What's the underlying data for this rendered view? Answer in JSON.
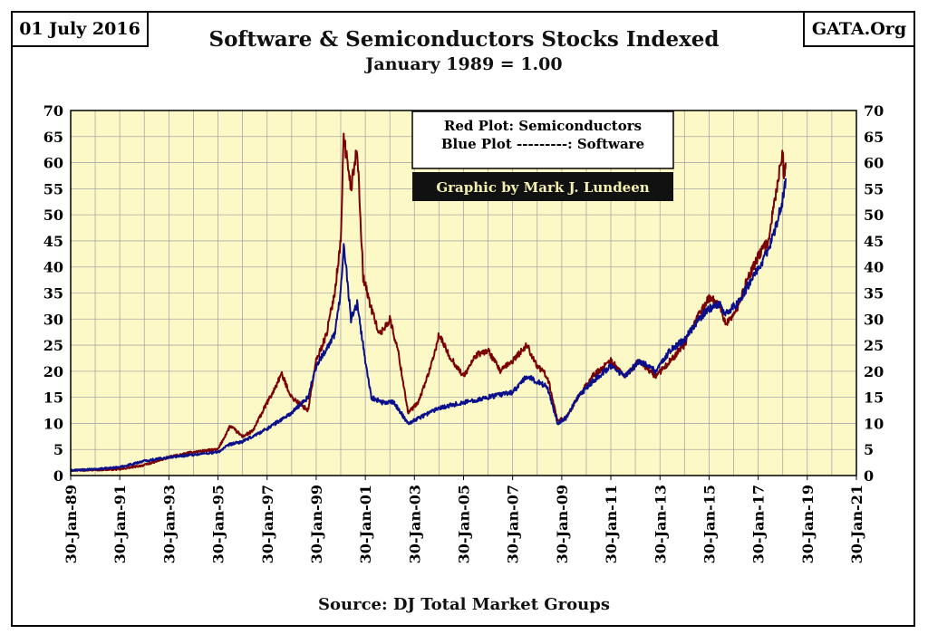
{
  "header": {
    "date": "01 July 2016",
    "site": "GATA.Org",
    "title": "Software & Semiconductors Stocks Indexed",
    "subtitle": "January 1989 = 1.00",
    "source": "Source: DJ Total Market Groups"
  },
  "legend": {
    "line1": "Red Plot: Semiconductors",
    "line2": "Blue Plot ---------: Software",
    "credit": "Graphic by Mark J. Lundeen"
  },
  "colors": {
    "plot_background": "#fdf9c6",
    "grid": "#a8a8a8",
    "semiconductors": "#7b0000",
    "software": "#0a0f8c",
    "credit_background": "#111111",
    "credit_text": "#f3eeb0"
  },
  "chart_data": {
    "type": "line",
    "ylim": [
      0,
      70
    ],
    "yticks": [
      0,
      5,
      10,
      15,
      20,
      25,
      30,
      35,
      40,
      45,
      50,
      55,
      60,
      65,
      70
    ],
    "xlim": [
      "1989-01-30",
      "2021-01-30"
    ],
    "xtick_labels": [
      "30-Jan-89",
      "30-Jan-91",
      "30-Jan-93",
      "30-Jan-95",
      "30-Jan-97",
      "30-Jan-99",
      "30-Jan-01",
      "30-Jan-03",
      "30-Jan-05",
      "30-Jan-07",
      "30-Jan-09",
      "30-Jan-11",
      "30-Jan-13",
      "30-Jan-15",
      "30-Jan-17",
      "30-Jan-19",
      "30-Jan-21"
    ],
    "grid": true,
    "legend_position": "top-center",
    "series": [
      {
        "name": "Semiconductors",
        "points": [
          [
            "1989-01-30",
            1.0
          ],
          [
            "1990-01-30",
            1.1
          ],
          [
            "1991-01-30",
            1.2
          ],
          [
            "1992-01-30",
            2.0
          ],
          [
            "1993-01-30",
            3.5
          ],
          [
            "1994-01-30",
            4.5
          ],
          [
            "1995-01-30",
            5.0
          ],
          [
            "1995-07-30",
            9.5
          ],
          [
            "1996-01-30",
            7.5
          ],
          [
            "1996-06-30",
            8.5
          ],
          [
            "1997-01-30",
            14.0
          ],
          [
            "1997-04-30",
            16.0
          ],
          [
            "1997-08-30",
            19.5
          ],
          [
            "1998-01-30",
            15.0
          ],
          [
            "1998-09-30",
            12.5
          ],
          [
            "1999-01-30",
            22.0
          ],
          [
            "1999-06-30",
            27.0
          ],
          [
            "1999-10-30",
            35.0
          ],
          [
            "2000-01-30",
            45.0
          ],
          [
            "2000-03-15",
            65.0
          ],
          [
            "2000-06-30",
            55.0
          ],
          [
            "2000-09-30",
            63.0
          ],
          [
            "2000-12-30",
            38.0
          ],
          [
            "2001-04-30",
            32.0
          ],
          [
            "2001-08-30",
            27.0
          ],
          [
            "2002-01-30",
            30.0
          ],
          [
            "2002-05-30",
            24.0
          ],
          [
            "2002-10-30",
            12.0
          ],
          [
            "2003-03-30",
            14.0
          ],
          [
            "2003-10-30",
            22.0
          ],
          [
            "2004-01-30",
            27.0
          ],
          [
            "2004-06-30",
            23.0
          ],
          [
            "2005-01-30",
            19.0
          ],
          [
            "2005-07-30",
            23.0
          ],
          [
            "2006-01-30",
            24.0
          ],
          [
            "2006-07-30",
            20.0
          ],
          [
            "2007-01-30",
            22.0
          ],
          [
            "2007-08-30",
            25.0
          ],
          [
            "2008-01-30",
            21.0
          ],
          [
            "2008-06-30",
            19.0
          ],
          [
            "2008-11-30",
            10.5
          ],
          [
            "2009-03-30",
            11.0
          ],
          [
            "2009-09-30",
            15.0
          ],
          [
            "2010-04-30",
            19.0
          ],
          [
            "2011-01-30",
            22.0
          ],
          [
            "2011-08-30",
            19.0
          ],
          [
            "2012-03-30",
            22.0
          ],
          [
            "2012-11-30",
            19.0
          ],
          [
            "2013-06-30",
            22.0
          ],
          [
            "2014-01-30",
            25.0
          ],
          [
            "2014-08-30",
            31.0
          ],
          [
            "2015-01-30",
            34.0
          ],
          [
            "2015-06-30",
            33.0
          ],
          [
            "2015-09-30",
            29.0
          ],
          [
            "2016-03-30",
            32.0
          ],
          [
            "2016-06-30",
            36.0
          ],
          [
            "2017-01-30",
            42.0
          ],
          [
            "2017-06-30",
            45.0
          ],
          [
            "2017-10-30",
            55.0
          ],
          [
            "2018-01-30",
            62.0
          ],
          [
            "2018-02-15",
            57.0
          ],
          [
            "2018-03-15",
            60.0
          ]
        ]
      },
      {
        "name": "Software",
        "points": [
          [
            "1989-01-30",
            1.0
          ],
          [
            "1990-01-30",
            1.2
          ],
          [
            "1991-01-30",
            1.6
          ],
          [
            "1992-01-30",
            2.8
          ],
          [
            "1993-01-30",
            3.5
          ],
          [
            "1994-01-30",
            4.0
          ],
          [
            "1995-01-30",
            4.5
          ],
          [
            "1995-07-30",
            6.0
          ],
          [
            "1996-01-30",
            6.5
          ],
          [
            "1996-06-30",
            7.5
          ],
          [
            "1997-01-30",
            9.0
          ],
          [
            "1998-01-30",
            12.0
          ],
          [
            "1998-09-30",
            15.0
          ],
          [
            "1999-01-30",
            21.0
          ],
          [
            "1999-10-30",
            27.0
          ],
          [
            "2000-01-30",
            35.0
          ],
          [
            "2000-03-15",
            45.0
          ],
          [
            "2000-06-30",
            30.0
          ],
          [
            "2000-09-30",
            33.0
          ],
          [
            "2001-01-30",
            22.0
          ],
          [
            "2001-04-30",
            15.0
          ],
          [
            "2001-09-30",
            14.0
          ],
          [
            "2002-03-30",
            14.0
          ],
          [
            "2002-10-30",
            10.0
          ],
          [
            "2003-03-30",
            11.0
          ],
          [
            "2004-01-30",
            13.0
          ],
          [
            "2005-01-30",
            14.0
          ],
          [
            "2006-01-30",
            15.0
          ],
          [
            "2007-01-30",
            16.0
          ],
          [
            "2007-08-30",
            19.0
          ],
          [
            "2008-01-30",
            18.0
          ],
          [
            "2008-06-30",
            17.0
          ],
          [
            "2008-11-30",
            10.0
          ],
          [
            "2009-03-30",
            11.0
          ],
          [
            "2009-09-30",
            15.0
          ],
          [
            "2010-04-30",
            18.0
          ],
          [
            "2011-01-30",
            21.0
          ],
          [
            "2011-08-30",
            19.0
          ],
          [
            "2012-03-30",
            22.0
          ],
          [
            "2012-11-30",
            20.0
          ],
          [
            "2013-06-30",
            24.0
          ],
          [
            "2014-01-30",
            26.0
          ],
          [
            "2014-08-30",
            30.0
          ],
          [
            "2015-01-30",
            32.0
          ],
          [
            "2015-06-30",
            33.0
          ],
          [
            "2015-09-30",
            31.0
          ],
          [
            "2016-03-30",
            33.0
          ],
          [
            "2016-06-30",
            35.0
          ],
          [
            "2017-01-30",
            40.0
          ],
          [
            "2017-06-30",
            43.0
          ],
          [
            "2017-10-30",
            48.0
          ],
          [
            "2018-01-30",
            53.0
          ],
          [
            "2018-03-15",
            57.0
          ]
        ]
      }
    ]
  }
}
